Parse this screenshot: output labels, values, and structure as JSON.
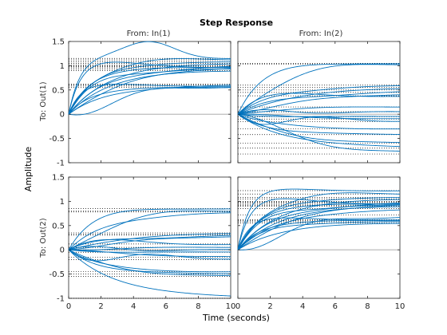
{
  "chart_data": {
    "type": "line",
    "title": "Step Response",
    "xlabel": "Time (seconds)",
    "ylabel": "Amplitude",
    "xlim": [
      0,
      10
    ],
    "ylim": [
      -1,
      1.5
    ],
    "xticks": [
      0,
      2,
      4,
      6,
      8,
      10
    ],
    "yticks": [
      -1,
      -0.5,
      0,
      0.5,
      1,
      1.5
    ],
    "xtick_labels": [
      "0",
      "2",
      "4",
      "6",
      "8",
      "10"
    ],
    "ytick_labels": [
      "-1",
      "-0.5",
      "0",
      "0.5",
      "1",
      "1.5"
    ],
    "column_titles": [
      "From: In(1)",
      "From: In(2)"
    ],
    "row_titles": [
      "To: Out(1)",
      "To: Out(2)"
    ],
    "grid": false,
    "line_color": "#0072bd",
    "reference_color": "#a0a0a0",
    "subplots": [
      {
        "row": 0,
        "col": 0,
        "steady_state": [
          1.15,
          1.12,
          1.08,
          1.05,
          1.02,
          1.0,
          0.98,
          0.96,
          0.93,
          0.9,
          0.62,
          0.6,
          0.58,
          0.55
        ],
        "max_overshoot_peak": 1.48
      },
      {
        "row": 0,
        "col": 1,
        "steady_state": [
          1.05,
          1.03,
          0.6,
          0.55,
          0.5,
          0.45,
          0.38,
          0.15,
          0.05,
          -0.05,
          -0.1,
          -0.15,
          -0.3,
          -0.42,
          -0.6,
          -0.7,
          -0.82
        ]
      },
      {
        "row": 1,
        "col": 0,
        "steady_state": [
          0.85,
          0.8,
          0.78,
          0.35,
          0.32,
          0.3,
          0.12,
          0.05,
          0.0,
          -0.05,
          -0.15,
          -0.2,
          -0.45,
          -0.5,
          -0.55,
          -1.0
        ]
      },
      {
        "row": 1,
        "col": 1,
        "steady_state": [
          1.22,
          1.15,
          1.08,
          1.05,
          1.0,
          0.98,
          0.96,
          0.94,
          0.92,
          0.9,
          0.85,
          0.72,
          0.62,
          0.6,
          0.58,
          0.55
        ]
      }
    ]
  }
}
